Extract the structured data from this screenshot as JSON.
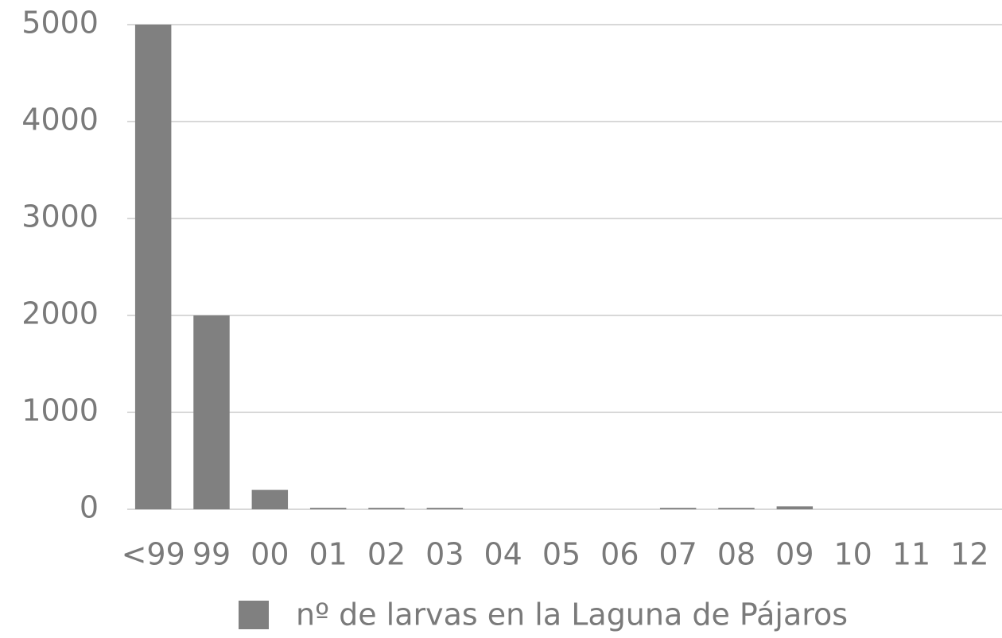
{
  "chart_data": {
    "type": "bar",
    "categories": [
      "<99",
      "99",
      "00",
      "01",
      "02",
      "03",
      "04",
      "05",
      "06",
      "07",
      "08",
      "09",
      "10",
      "11",
      "12"
    ],
    "series": [
      {
        "name": "nº de larvas en la Laguna de Pájaros",
        "color": "#808080",
        "values": [
          5000,
          2000,
          200,
          15,
          15,
          15,
          0,
          0,
          0,
          15,
          15,
          30,
          0,
          0,
          0
        ]
      }
    ],
    "ylim": [
      0,
      5000
    ],
    "yticks": [
      0,
      1000,
      2000,
      3000,
      4000,
      5000
    ],
    "grid": true,
    "legend": "bottom"
  }
}
